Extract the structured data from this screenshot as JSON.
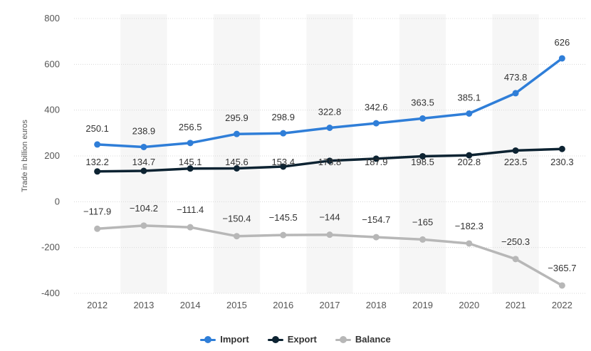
{
  "chart_data": {
    "type": "line",
    "x": [
      "2012",
      "2013",
      "2014",
      "2015",
      "2016",
      "2017",
      "2018",
      "2019",
      "2020",
      "2021",
      "2022"
    ],
    "series": [
      {
        "name": "Import",
        "color": "#2f7ed8",
        "values": [
          250.1,
          238.9,
          256.5,
          295.9,
          298.9,
          322.8,
          342.6,
          363.5,
          385.1,
          473.8,
          626
        ],
        "labels": [
          "250.1",
          "238.9",
          "256.5",
          "295.9",
          "298.9",
          "322.8",
          "342.6",
          "363.5",
          "385.1",
          "473.8",
          "626"
        ]
      },
      {
        "name": "Export",
        "color": "#0d2332",
        "values": [
          132.2,
          134.7,
          145.1,
          145.6,
          153.4,
          178.8,
          187.9,
          198.5,
          202.8,
          223.5,
          230.3
        ],
        "labels": [
          "132.2",
          "134.7",
          "145.1",
          "145.6",
          "153.4",
          "178.8",
          "187.9",
          "198.5",
          "202.8",
          "223.5",
          "230.3"
        ]
      },
      {
        "name": "Balance",
        "color": "#b7b7b7",
        "values": [
          -117.9,
          -104.2,
          -111.4,
          -150.4,
          -145.5,
          -144,
          -154.7,
          -165,
          -182.3,
          -250.3,
          -365.7
        ],
        "labels": [
          "−117.9",
          "−104.2",
          "−111.4",
          "−150.4",
          "−145.5",
          "−144",
          "−154.7",
          "−165",
          "−182.3",
          "−250.3",
          "−365.7"
        ]
      }
    ],
    "ylabel": "Trade in billion euros",
    "xlabel": "",
    "ylim": [
      -400,
      800
    ],
    "yticks": [
      800,
      600,
      400,
      200,
      0,
      -200,
      -400
    ],
    "ytick_labels": [
      "800",
      "600",
      "400",
      "200",
      "0",
      "-200",
      "-400"
    ],
    "grid": true,
    "legend_position": "bottom-center"
  }
}
